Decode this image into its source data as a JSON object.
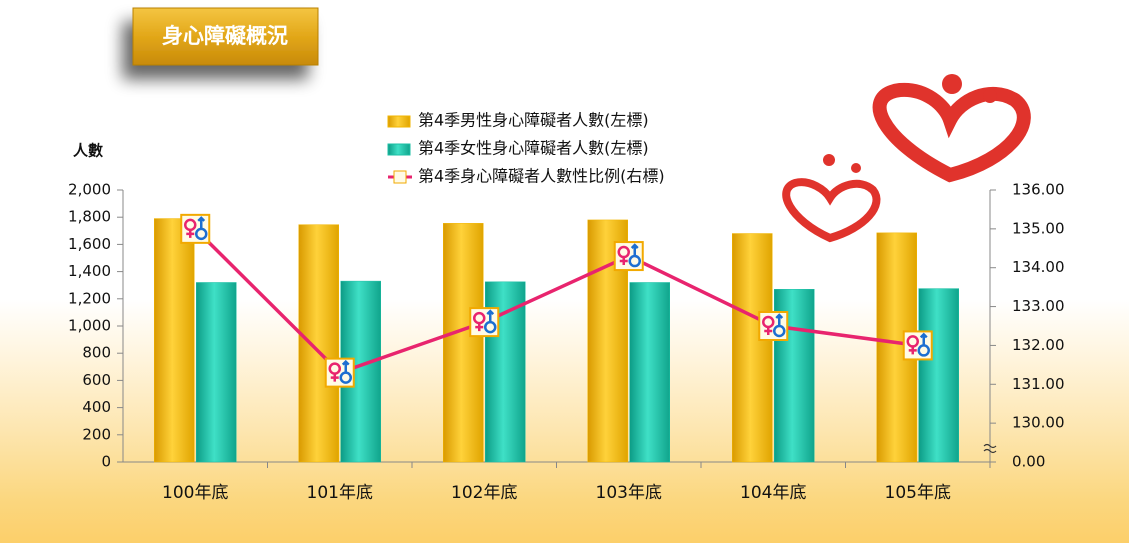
{
  "chart_data": {
    "type": "bar-line",
    "title": "身心障礙概況",
    "y_label": "人數",
    "categories": [
      "100年底",
      "101年底",
      "102年底",
      "103年底",
      "104年底",
      "105年底"
    ],
    "series": [
      {
        "name": "第4季男性身心障礙者人數(左標)",
        "type": "bar",
        "color": "#f2b500",
        "values": [
          1790,
          1745,
          1755,
          1780,
          1680,
          1685
        ]
      },
      {
        "name": "第4季女性身心障礙者人數(左標)",
        "type": "bar",
        "color": "#1cbfa4",
        "values": [
          1320,
          1330,
          1325,
          1320,
          1270,
          1275
        ]
      },
      {
        "name": "第4季身心障礙者人數性比例(右標)",
        "type": "line",
        "color": "#e8246e",
        "axis": "y2",
        "values": [
          135.0,
          131.3,
          132.6,
          134.3,
          132.5,
          132.0
        ]
      }
    ],
    "ylim": [
      0,
      2000
    ],
    "yticks": [
      0,
      200,
      400,
      600,
      800,
      {
        "value": 1000,
        "label": "1,000"
      },
      {
        "value": 1200,
        "label": "1,200"
      },
      {
        "value": 1400,
        "label": "1,400"
      },
      {
        "value": 1600,
        "label": "1,600"
      },
      {
        "value": 1800,
        "label": "1,800"
      },
      {
        "value": 2000,
        "label": "2,000"
      }
    ],
    "y2lim": [
      0,
      136
    ],
    "y2break": [
      0,
      129
    ],
    "y2ticks": [
      {
        "value": 0,
        "label": "0.00"
      },
      {
        "value": 130,
        "label": "130.00"
      },
      {
        "value": 131,
        "label": "131.00"
      },
      {
        "value": 132,
        "label": "132.00"
      },
      {
        "value": 133,
        "label": "133.00"
      },
      {
        "value": 134,
        "label": "134.00"
      },
      {
        "value": 135,
        "label": "135.00"
      },
      {
        "value": 136,
        "label": "136.00"
      }
    ],
    "grid": false
  }
}
